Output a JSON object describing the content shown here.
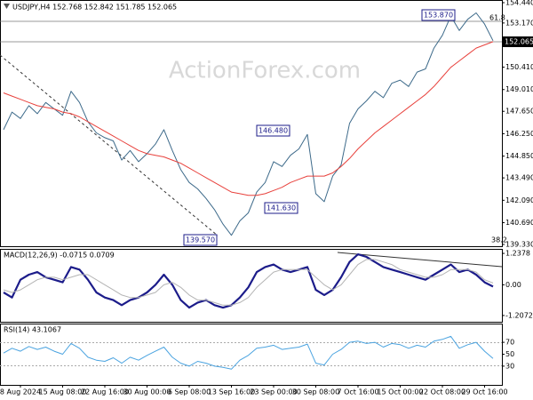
{
  "chart_data": [
    {
      "type": "line",
      "title": "USDJPY,H4 152.768 152.842 151.785 152.065",
      "watermark": "ActionForex.com",
      "series": [
        {
          "color": "#3d6a8a",
          "values": [
            146.5,
            147.6,
            147.2,
            148.0,
            147.5,
            148.2,
            147.8,
            147.4,
            148.9,
            148.2,
            147.0,
            146.3,
            146.0,
            145.8,
            144.6,
            145.2,
            144.5,
            145.0,
            145.6,
            146.5,
            145.2,
            144.0,
            143.2,
            142.8,
            142.2,
            141.5,
            140.6,
            139.9,
            140.8,
            141.3,
            142.6,
            143.2,
            144.5,
            144.2,
            144.9,
            145.3,
            146.2,
            142.5,
            142.0,
            143.6,
            144.3,
            146.9,
            147.8,
            148.3,
            148.9,
            148.5,
            149.4,
            149.6,
            149.2,
            150.1,
            150.3,
            151.6,
            152.4,
            153.6,
            152.7,
            153.4,
            153.8,
            153.1,
            152.065
          ]
        },
        {
          "color": "#e8413c",
          "values": [
            148.8,
            148.6,
            148.4,
            148.2,
            148.0,
            147.9,
            147.8,
            147.6,
            147.5,
            147.3,
            147.0,
            146.7,
            146.4,
            146.1,
            145.8,
            145.5,
            145.2,
            145.0,
            144.9,
            144.8,
            144.6,
            144.4,
            144.1,
            143.8,
            143.5,
            143.2,
            142.9,
            142.6,
            142.5,
            142.4,
            142.4,
            142.5,
            142.7,
            142.9,
            143.2,
            143.4,
            143.6,
            143.6,
            143.6,
            143.8,
            144.2,
            144.7,
            145.3,
            145.8,
            146.3,
            146.7,
            147.1,
            147.5,
            147.9,
            148.3,
            148.7,
            149.2,
            149.8,
            150.4,
            150.8,
            151.2,
            151.6,
            151.8,
            152.0
          ]
        }
      ],
      "ylim": [
        139.33,
        154.44
      ],
      "yticks": [
        {
          "value": 154.44,
          "label": "154.440"
        },
        {
          "value": 153.17,
          "label": "153.170"
        },
        {
          "value": 150.41,
          "label": "150.410"
        },
        {
          "value": 149.01,
          "label": "149.010"
        },
        {
          "value": 147.65,
          "label": "147.650"
        },
        {
          "value": 146.25,
          "label": "146.250"
        },
        {
          "value": 144.85,
          "label": "144.850"
        },
        {
          "value": 143.49,
          "label": "143.490"
        },
        {
          "value": 142.09,
          "label": "142.090"
        },
        {
          "value": 140.69,
          "label": "140.690"
        },
        {
          "value": 139.33,
          "label": "139.330"
        }
      ],
      "annotations": [
        "153.870",
        "146.480",
        "141.630",
        "139.570"
      ],
      "last_price": "152.065",
      "fib_labels": [
        "61.8",
        "38.2"
      ]
    },
    {
      "type": "line",
      "title": "MACD(12,26,9) -0.0715 0.0709",
      "series": [
        {
          "color": "#1c1c8a",
          "values": [
            -0.3,
            -0.5,
            0.2,
            0.4,
            0.5,
            0.3,
            0.2,
            0.1,
            0.7,
            0.6,
            0.2,
            -0.3,
            -0.5,
            -0.6,
            -0.8,
            -0.6,
            -0.5,
            -0.3,
            0.0,
            0.4,
            0.0,
            -0.6,
            -0.9,
            -0.7,
            -0.6,
            -0.8,
            -0.9,
            -0.8,
            -0.5,
            -0.1,
            0.5,
            0.7,
            0.8,
            0.6,
            0.5,
            0.6,
            0.7,
            -0.2,
            -0.4,
            -0.2,
            0.3,
            0.9,
            1.2,
            1.1,
            0.9,
            0.7,
            0.6,
            0.5,
            0.4,
            0.3,
            0.2,
            0.4,
            0.6,
            0.8,
            0.5,
            0.6,
            0.4,
            0.1,
            -0.07
          ]
        },
        {
          "color": "#b4b4b4",
          "values": [
            -0.2,
            -0.3,
            -0.2,
            0.0,
            0.2,
            0.3,
            0.3,
            0.2,
            0.3,
            0.4,
            0.4,
            0.2,
            0.0,
            -0.2,
            -0.4,
            -0.5,
            -0.5,
            -0.4,
            -0.3,
            0.0,
            0.1,
            -0.1,
            -0.4,
            -0.6,
            -0.6,
            -0.7,
            -0.8,
            -0.8,
            -0.7,
            -0.5,
            -0.1,
            0.2,
            0.5,
            0.6,
            0.6,
            0.6,
            0.6,
            0.3,
            0.0,
            -0.2,
            0.0,
            0.4,
            0.8,
            1.0,
            1.0,
            0.9,
            0.8,
            0.6,
            0.5,
            0.4,
            0.3,
            0.3,
            0.4,
            0.6,
            0.6,
            0.6,
            0.5,
            0.2,
            0.07
          ]
        }
      ],
      "ylim": [
        -1.42,
        1.38
      ],
      "yticks": [
        1.2378,
        {
          "value": 0,
          "label": "0.00"
        },
        -1.2072
      ]
    },
    {
      "type": "line",
      "title": "RSI(14) 43.1067",
      "series": [
        {
          "color": "#4aa3e0",
          "values": [
            52,
            60,
            55,
            63,
            58,
            62,
            55,
            50,
            68,
            60,
            45,
            40,
            38,
            44,
            35,
            45,
            40,
            48,
            55,
            62,
            45,
            35,
            30,
            38,
            35,
            30,
            28,
            25,
            40,
            48,
            60,
            62,
            65,
            58,
            60,
            62,
            67,
            35,
            32,
            50,
            58,
            70,
            72,
            68,
            70,
            62,
            68,
            66,
            60,
            65,
            62,
            72,
            75,
            80,
            60,
            66,
            70,
            55,
            43
          ]
        }
      ],
      "ylim": [
        0,
        100
      ],
      "yticks": [
        70,
        50,
        30
      ],
      "categories": [
        null,
        null,
        "8 Aug 2024",
        null,
        null,
        null,
        null,
        "15 Aug 08:00",
        null,
        null,
        null,
        null,
        "22 Aug 16:00",
        null,
        null,
        null,
        null,
        "30 Aug 00:00",
        null,
        null,
        null,
        null,
        "6 Sep 08:00",
        null,
        null,
        null,
        null,
        "13 Sep 16:00",
        null,
        null,
        null,
        null,
        "23 Sep 00:00",
        null,
        null,
        null,
        null,
        "30 Sep 08:00",
        null,
        null,
        null,
        null,
        "7 Oct 16:00",
        null,
        null,
        null,
        null,
        "15 Oct 00:00",
        null,
        null,
        null,
        null,
        "22 Oct 08:00",
        null,
        null,
        null,
        null,
        "29 Oct 16:00",
        null
      ]
    }
  ]
}
